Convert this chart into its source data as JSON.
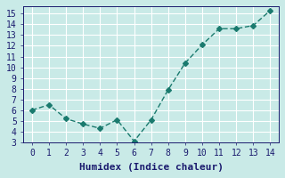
{
  "x": [
    0,
    1,
    2,
    3,
    4,
    5,
    6,
    7,
    8,
    9,
    10,
    11,
    12,
    13,
    14
  ],
  "y": [
    6.0,
    6.5,
    5.2,
    4.7,
    4.3,
    5.1,
    3.1,
    5.1,
    7.9,
    10.4,
    12.1,
    13.6,
    13.6,
    13.9,
    15.3
  ],
  "line_color": "#1a7a6e",
  "marker": "D",
  "marker_size": 3,
  "background_color": "#c9eae7",
  "grid_color": "#ffffff",
  "xlabel": "Humidex (Indice chaleur)",
  "ylabel": "",
  "title": "",
  "xlim": [
    -0.5,
    14.5
  ],
  "ylim": [
    3,
    15.7
  ],
  "xticks": [
    0,
    1,
    2,
    3,
    4,
    5,
    6,
    7,
    8,
    9,
    10,
    11,
    12,
    13,
    14
  ],
  "yticks": [
    3,
    4,
    5,
    6,
    7,
    8,
    9,
    10,
    11,
    12,
    13,
    14,
    15
  ],
  "font_color": "#1a1a6e",
  "tick_fontsize": 7,
  "xlabel_fontsize": 8
}
